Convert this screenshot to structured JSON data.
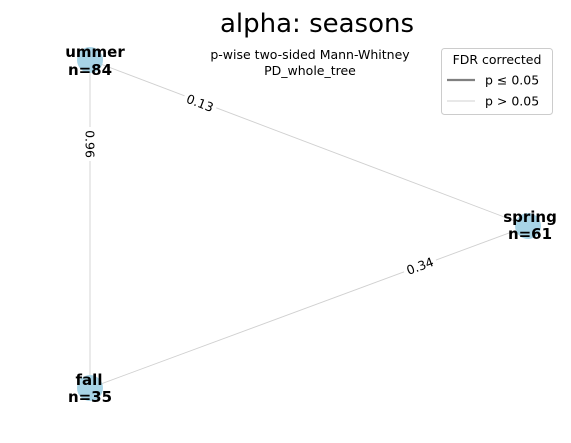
{
  "title": "alpha: seasons",
  "subtitle_line1": "p-wise two-sided Mann-Whitney",
  "subtitle_line2": "PD_whole_tree",
  "colors": {
    "node": "#a8d4e6",
    "edge_nonsig": "#d0d0d0",
    "edge_sig": "#808080"
  },
  "legend": {
    "title": "FDR corrected",
    "entries": [
      {
        "label": "p ≤ 0.05"
      },
      {
        "label": "p > 0.05"
      }
    ]
  },
  "nodes": [
    {
      "id": "summer",
      "name": "ummer",
      "count": "n=84"
    },
    {
      "id": "spring",
      "name": "spring",
      "count": "n=61"
    },
    {
      "id": "fall",
      "name": "fall",
      "count": "n=35"
    }
  ],
  "edges": [
    {
      "from": "summer",
      "to": "spring",
      "p": "0.13"
    },
    {
      "from": "summer",
      "to": "fall",
      "p": "0.96"
    },
    {
      "from": "spring",
      "to": "fall",
      "p": "0.34"
    }
  ]
}
